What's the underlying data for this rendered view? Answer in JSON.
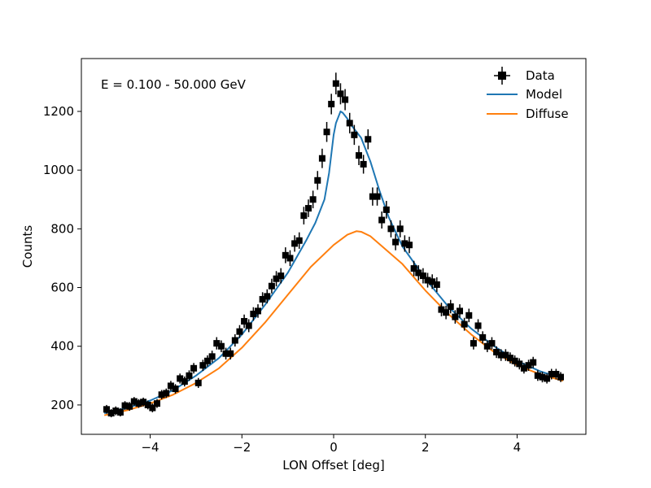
{
  "chart_data": {
    "type": "scatter",
    "title": "",
    "annotation": "E = 0.100 - 50.000 GeV",
    "xlabel": "LON Offset [deg]",
    "ylabel": "Counts",
    "xlim": [
      -5.5,
      5.5
    ],
    "ylim": [
      100,
      1380
    ],
    "xticks": [
      -4,
      -2,
      0,
      2,
      4
    ],
    "yticks": [
      200,
      400,
      600,
      800,
      1000,
      1200
    ],
    "xtick_labels": [
      "−4",
      "−2",
      "0",
      "2",
      "4"
    ],
    "ytick_labels": [
      "200",
      "400",
      "600",
      "800",
      "1000",
      "1200"
    ],
    "grid": false,
    "legend_position": "top-right",
    "colors": {
      "data": "#000000",
      "model": "#1f77b4",
      "diffuse": "#ff7f0e"
    },
    "series": [
      {
        "name": "Data",
        "kind": "errorbar",
        "x": [
          -4.95,
          -4.85,
          -4.75,
          -4.65,
          -4.55,
          -4.45,
          -4.35,
          -4.25,
          -4.15,
          -4.05,
          -3.95,
          -3.85,
          -3.75,
          -3.65,
          -3.55,
          -3.45,
          -3.35,
          -3.25,
          -3.15,
          -3.05,
          -2.95,
          -2.85,
          -2.75,
          -2.65,
          -2.55,
          -2.45,
          -2.35,
          -2.25,
          -2.15,
          -2.05,
          -1.95,
          -1.85,
          -1.75,
          -1.65,
          -1.55,
          -1.45,
          -1.35,
          -1.25,
          -1.15,
          -1.05,
          -0.95,
          -0.85,
          -0.75,
          -0.65,
          -0.55,
          -0.45,
          -0.35,
          -0.25,
          -0.15,
          -0.05,
          0.05,
          0.15,
          0.25,
          0.35,
          0.45,
          0.55,
          0.65,
          0.75,
          0.85,
          0.95,
          1.05,
          1.15,
          1.25,
          1.35,
          1.45,
          1.55,
          1.65,
          1.75,
          1.85,
          1.95,
          2.05,
          2.15,
          2.25,
          2.35,
          2.45,
          2.55,
          2.65,
          2.75,
          2.85,
          2.95,
          3.05,
          3.15,
          3.25,
          3.35,
          3.45,
          3.55,
          3.65,
          3.75,
          3.85,
          3.95,
          4.05,
          4.15,
          4.25,
          4.35,
          4.45,
          4.55,
          4.65,
          4.75,
          4.85,
          4.95
        ],
        "y": [
          185,
          172,
          180,
          175,
          198,
          195,
          212,
          205,
          210,
          200,
          190,
          205,
          235,
          240,
          265,
          255,
          290,
          280,
          300,
          325,
          275,
          335,
          350,
          365,
          410,
          400,
          375,
          375,
          420,
          450,
          485,
          470,
          510,
          520,
          560,
          570,
          605,
          630,
          640,
          710,
          700,
          750,
          760,
          845,
          870,
          900,
          965,
          1040,
          1130,
          1225,
          1295,
          1260,
          1240,
          1160,
          1120,
          1050,
          1020,
          1105,
          910,
          910,
          830,
          865,
          800,
          755,
          800,
          750,
          745,
          665,
          650,
          640,
          625,
          620,
          610,
          525,
          515,
          535,
          500,
          520,
          475,
          505,
          410,
          470,
          430,
          400,
          410,
          380,
          370,
          370,
          360,
          350,
          340,
          325,
          335,
          345,
          300,
          295,
          290,
          305,
          305,
          295
        ],
        "yerr": [
          15,
          14,
          15,
          14,
          15,
          15,
          15,
          15,
          15,
          15,
          15,
          15,
          16,
          16,
          17,
          16,
          17,
          17,
          18,
          18,
          17,
          19,
          19,
          20,
          21,
          20,
          20,
          20,
          21,
          22,
          23,
          22,
          23,
          23,
          24,
          24,
          25,
          26,
          26,
          27,
          27,
          28,
          28,
          30,
          30,
          30,
          32,
          33,
          34,
          35,
          37,
          36,
          36,
          35,
          34,
          33,
          32,
          34,
          31,
          31,
          29,
          30,
          29,
          28,
          29,
          28,
          28,
          26,
          26,
          26,
          25,
          25,
          25,
          23,
          23,
          23,
          23,
          23,
          22,
          23,
          21,
          22,
          21,
          20,
          21,
          20,
          20,
          20,
          19,
          19,
          19,
          18,
          19,
          19,
          18,
          18,
          17,
          18,
          18,
          17
        ]
      },
      {
        "name": "Model",
        "kind": "line",
        "x": [
          -5.0,
          -4.5,
          -4.0,
          -3.5,
          -3.0,
          -2.5,
          -2.0,
          -1.5,
          -1.0,
          -0.6,
          -0.4,
          -0.2,
          -0.1,
          0.0,
          0.05,
          0.1,
          0.15,
          0.2,
          0.3,
          0.4,
          0.5,
          0.6,
          0.8,
          1.0,
          1.2,
          1.5,
          2.0,
          2.5,
          3.0,
          3.5,
          4.0,
          4.5,
          5.0
        ],
        "y": [
          172,
          190,
          215,
          250,
          300,
          360,
          440,
          540,
          650,
          760,
          820,
          900,
          990,
          1120,
          1160,
          1180,
          1200,
          1195,
          1175,
          1150,
          1130,
          1110,
          1030,
          930,
          840,
          740,
          630,
          535,
          460,
          400,
          350,
          315,
          290
        ]
      },
      {
        "name": "Diffuse",
        "kind": "line",
        "x": [
          -5.0,
          -4.5,
          -4.0,
          -3.5,
          -3.0,
          -2.5,
          -2.0,
          -1.5,
          -1.0,
          -0.5,
          0.0,
          0.3,
          0.5,
          0.6,
          0.8,
          1.0,
          1.5,
          2.0,
          2.5,
          3.0,
          3.5,
          4.0,
          4.5,
          5.0
        ],
        "y": [
          165,
          182,
          205,
          235,
          275,
          325,
          395,
          480,
          575,
          670,
          745,
          780,
          792,
          790,
          775,
          748,
          680,
          590,
          510,
          440,
          380,
          335,
          305,
          282
        ]
      }
    ]
  }
}
